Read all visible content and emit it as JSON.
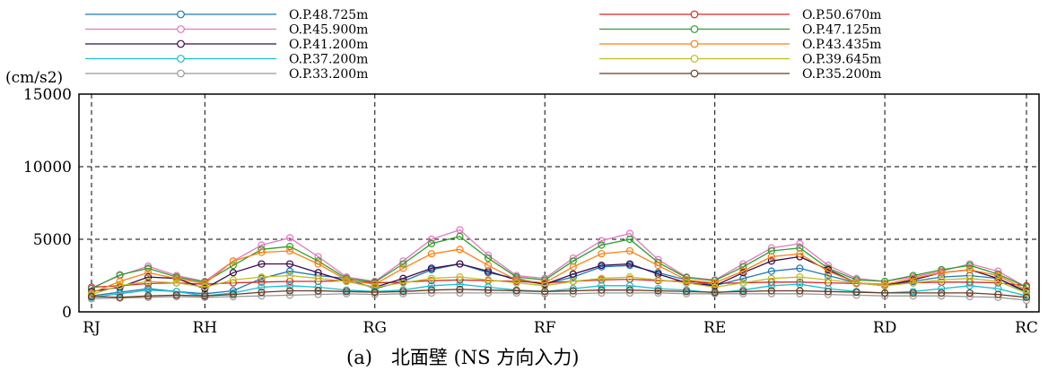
{
  "chart_data": {
    "type": "line",
    "ylabel": "(cm/s2)",
    "ylim": [
      0,
      15000
    ],
    "y_ticks": [
      "0",
      "5000",
      "10000",
      "15000"
    ],
    "x_positions": [
      "RJ",
      "RJ-RH 1/4",
      "RJ-RH 1/2",
      "RJ-RH 3/4",
      "RH",
      "RH-RG 1/6",
      "RH-RG 2/6",
      "RH-RG 3/6",
      "RH-RG 4/6",
      "RH-RG 5/6",
      "RG",
      "RG-RF 1/6",
      "RG-RF 2/6",
      "RG-RF 3/6",
      "RG-RF 4/6",
      "RG-RF 5/6",
      "RF",
      "RF-RE 1/6",
      "RF-RE 2/6",
      "RF-RE 3/6",
      "RF-RE 4/6",
      "RF-RE 5/6",
      "RE",
      "RE-RD 1/6",
      "RE-RD 2/6",
      "RE-RD 3/6",
      "RE-RD 4/6",
      "RE-RD 5/6",
      "RD",
      "RD-RC 1/5",
      "RD-RC 2/5",
      "RD-RC 3/5",
      "RD-RC 4/5",
      "RC"
    ],
    "x_ticks": [
      "RJ",
      "RH",
      "RG",
      "RF",
      "RE",
      "RD",
      "RC"
    ],
    "x_tick_index": [
      0,
      4,
      10,
      16,
      22,
      28,
      33
    ],
    "series": [
      {
        "name": "O.P.48.725m",
        "color": "#1f77b4",
        "values": [
          1100,
          1350,
          1600,
          1400,
          1250,
          1450,
          2300,
          2800,
          2500,
          2300,
          1600,
          2100,
          2900,
          3300,
          2700,
          2300,
          1900,
          2400,
          3100,
          3200,
          2700,
          2200,
          1800,
          2300,
          2800,
          3000,
          2500,
          2000,
          1800,
          2100,
          2400,
          2500,
          2300,
          1300
        ]
      },
      {
        "name": "O.P.50.670m",
        "color": "#d62728",
        "values": [
          1700,
          1800,
          1950,
          2000,
          1900,
          2000,
          2050,
          2100,
          2100,
          2150,
          2000,
          2050,
          2150,
          2200,
          2150,
          2100,
          2000,
          2100,
          2200,
          2250,
          2150,
          2100,
          1950,
          2000,
          2050,
          2050,
          2000,
          1950,
          1900,
          2000,
          2050,
          2050,
          2000,
          1800
        ]
      },
      {
        "name": "O.P.45.900m",
        "color": "#e377c2",
        "values": [
          1650,
          2500,
          3150,
          2500,
          2100,
          3500,
          4600,
          5100,
          3800,
          2400,
          2100,
          3500,
          5000,
          5650,
          3900,
          2500,
          2300,
          3700,
          4900,
          5400,
          3600,
          2400,
          2200,
          3300,
          4400,
          4700,
          3200,
          2300,
          2100,
          2400,
          2800,
          3300,
          2800,
          1700
        ]
      },
      {
        "name": "O.P.47.125m",
        "color": "#2ca02c",
        "values": [
          1600,
          2550,
          3000,
          2400,
          2050,
          3200,
          4300,
          4500,
          3500,
          2300,
          2050,
          3300,
          4700,
          5200,
          3700,
          2400,
          2200,
          3500,
          4600,
          5000,
          3400,
          2350,
          2150,
          3100,
          4200,
          4400,
          3000,
          2200,
          2100,
          2500,
          2900,
          3200,
          2600,
          1700
        ]
      },
      {
        "name": "O.P.41.200m",
        "color": "#3b0a4d",
        "values": [
          1400,
          1700,
          2400,
          2300,
          1600,
          2700,
          3300,
          3300,
          2700,
          2100,
          1700,
          2300,
          3000,
          3300,
          2800,
          2200,
          1900,
          2600,
          3200,
          3300,
          2600,
          2000,
          1800,
          2700,
          3500,
          3800,
          2900,
          2000,
          1800,
          2200,
          2700,
          2900,
          2300,
          1400
        ]
      },
      {
        "name": "O.P.43.435m",
        "color": "#ff7f0e",
        "values": [
          1300,
          2100,
          2700,
          2300,
          1950,
          3500,
          4100,
          4200,
          3300,
          2200,
          1900,
          3000,
          4000,
          4300,
          3200,
          2200,
          2000,
          3100,
          4000,
          4200,
          3200,
          2200,
          2000,
          2800,
          3800,
          4000,
          2800,
          2000,
          1900,
          2300,
          2700,
          2900,
          2500,
          1500
        ]
      },
      {
        "name": "O.P.37.200m",
        "color": "#17becf",
        "values": [
          1000,
          1250,
          1500,
          1400,
          1100,
          1300,
          1700,
          1800,
          1700,
          1500,
          1400,
          1500,
          1800,
          1900,
          1700,
          1500,
          1400,
          1600,
          1800,
          1800,
          1600,
          1500,
          1300,
          1500,
          1800,
          1900,
          1600,
          1400,
          1300,
          1400,
          1600,
          1800,
          1600,
          1100
        ]
      },
      {
        "name": "O.P.39.645m",
        "color": "#bcbd22",
        "values": [
          1200,
          1800,
          2100,
          2000,
          1700,
          2200,
          2400,
          2500,
          2300,
          2100,
          1700,
          2000,
          2300,
          2400,
          2200,
          2000,
          1800,
          2100,
          2300,
          2400,
          2200,
          2000,
          1700,
          2000,
          2300,
          2400,
          2200,
          2000,
          1800,
          2000,
          2200,
          2300,
          2100,
          1300
        ]
      },
      {
        "name": "O.P.33.200m",
        "color": "#999999",
        "values": [
          900,
          950,
          1000,
          1050,
          1000,
          1050,
          1100,
          1150,
          1200,
          1250,
          1200,
          1250,
          1300,
          1300,
          1300,
          1300,
          1250,
          1250,
          1300,
          1300,
          1300,
          1250,
          1250,
          1250,
          1250,
          1250,
          1200,
          1150,
          1100,
          1100,
          1100,
          1050,
          1000,
          800
        ]
      },
      {
        "name": "O.P.35.200m",
        "color": "#6b3a1f",
        "values": [
          1050,
          1000,
          1100,
          1150,
          1100,
          1200,
          1350,
          1450,
          1450,
          1400,
          1350,
          1400,
          1500,
          1550,
          1500,
          1450,
          1400,
          1450,
          1500,
          1500,
          1450,
          1400,
          1350,
          1400,
          1450,
          1450,
          1400,
          1350,
          1300,
          1300,
          1300,
          1300,
          1200,
          1000
        ]
      }
    ]
  },
  "caption": "(a)　北面壁 (NS 方向入力)"
}
